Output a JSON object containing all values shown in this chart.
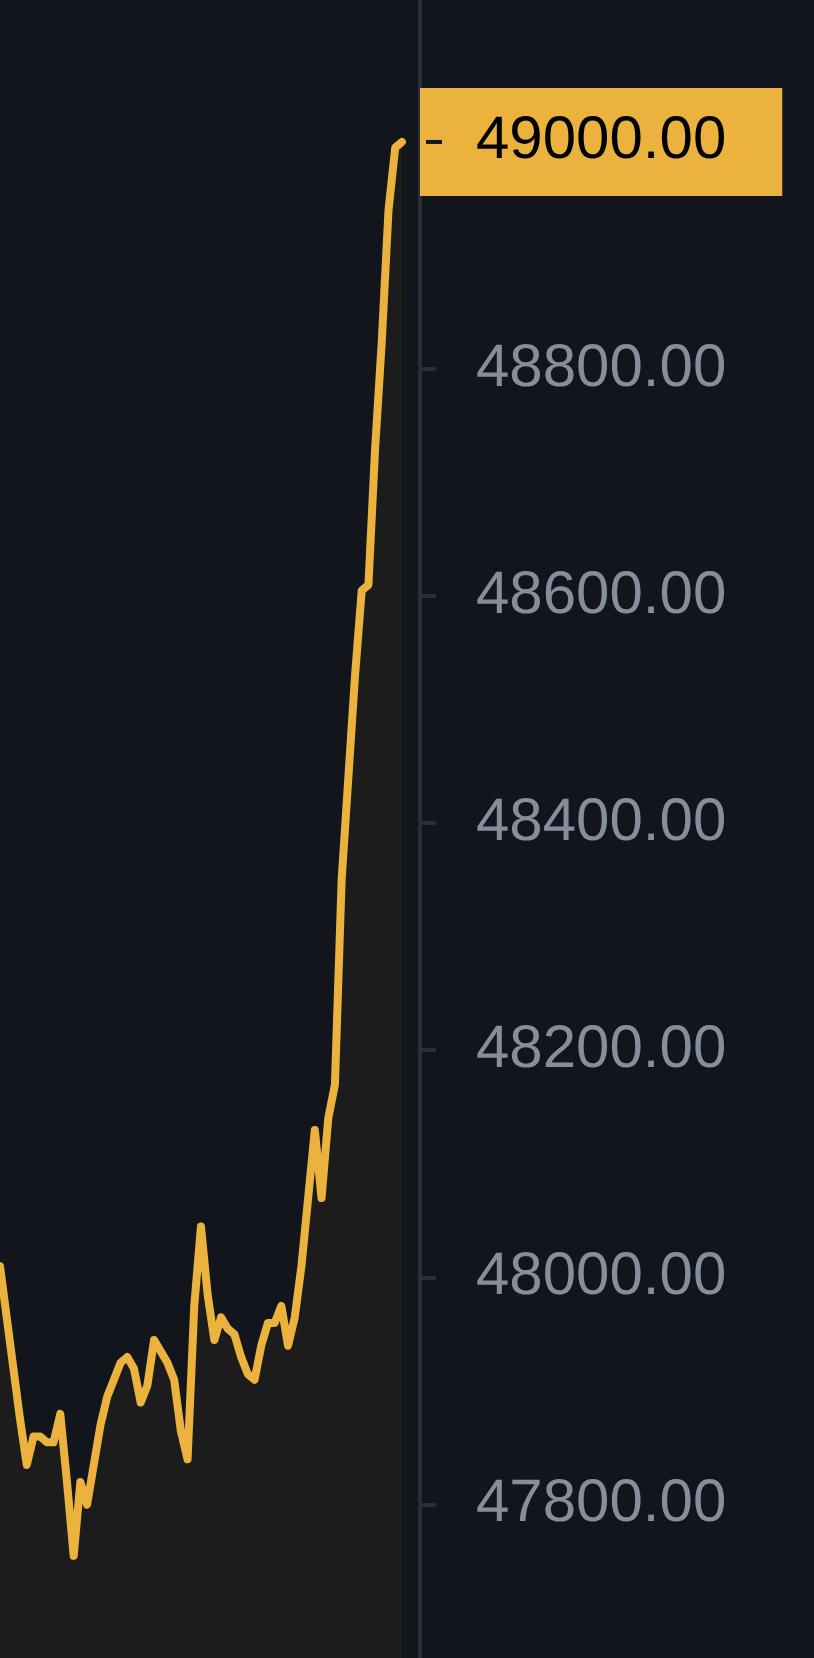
{
  "chart_data": {
    "type": "area",
    "categories": [
      null,
      null,
      null,
      null,
      null,
      null,
      null,
      null,
      null,
      null,
      null,
      null,
      null,
      null,
      null,
      null,
      null,
      null,
      null,
      null,
      null,
      null,
      null,
      null,
      null,
      null,
      null,
      null,
      null,
      null,
      null,
      null,
      null,
      null,
      null,
      null,
      null,
      null,
      null,
      null,
      null,
      null,
      null,
      null,
      null,
      null,
      null,
      null,
      null,
      null,
      null,
      null,
      null,
      null,
      null,
      null,
      null,
      null,
      null,
      null,
      null
    ],
    "series": [
      {
        "color": "#ebb33e",
        "values": [
          48010,
          47965,
          47920,
          47875,
          47835,
          47860,
          47860,
          47855,
          47855,
          47880,
          47820,
          47755,
          47820,
          47800,
          47835,
          47870,
          47895,
          47910,
          47925,
          47930,
          47920,
          47890,
          47905,
          47945,
          47935,
          47925,
          47910,
          47865,
          47840,
          47975,
          48045,
          47985,
          47945,
          47965,
          47955,
          47950,
          47930,
          47915,
          47910,
          47940,
          47960,
          47960,
          47975,
          47940,
          47965,
          48010,
          48070,
          48130,
          48070,
          48140,
          48170,
          48350,
          48440,
          48530,
          48605,
          48610,
          48730,
          48825,
          48940,
          48995,
          49000
        ]
      }
    ],
    "ylim": [
      47665,
      49125
    ],
    "yticks": [
      {
        "value": 47800,
        "label": "47800.00"
      },
      {
        "value": 48000,
        "label": "48000.00"
      },
      {
        "value": 48200,
        "label": "48200.00"
      },
      {
        "value": 48400,
        "label": "48400.00"
      },
      {
        "value": 48600,
        "label": "48600.00"
      },
      {
        "value": 48800,
        "label": "48800.00"
      }
    ],
    "grid": false,
    "legend": false,
    "annotations": [
      "49000.00"
    ]
  }
}
